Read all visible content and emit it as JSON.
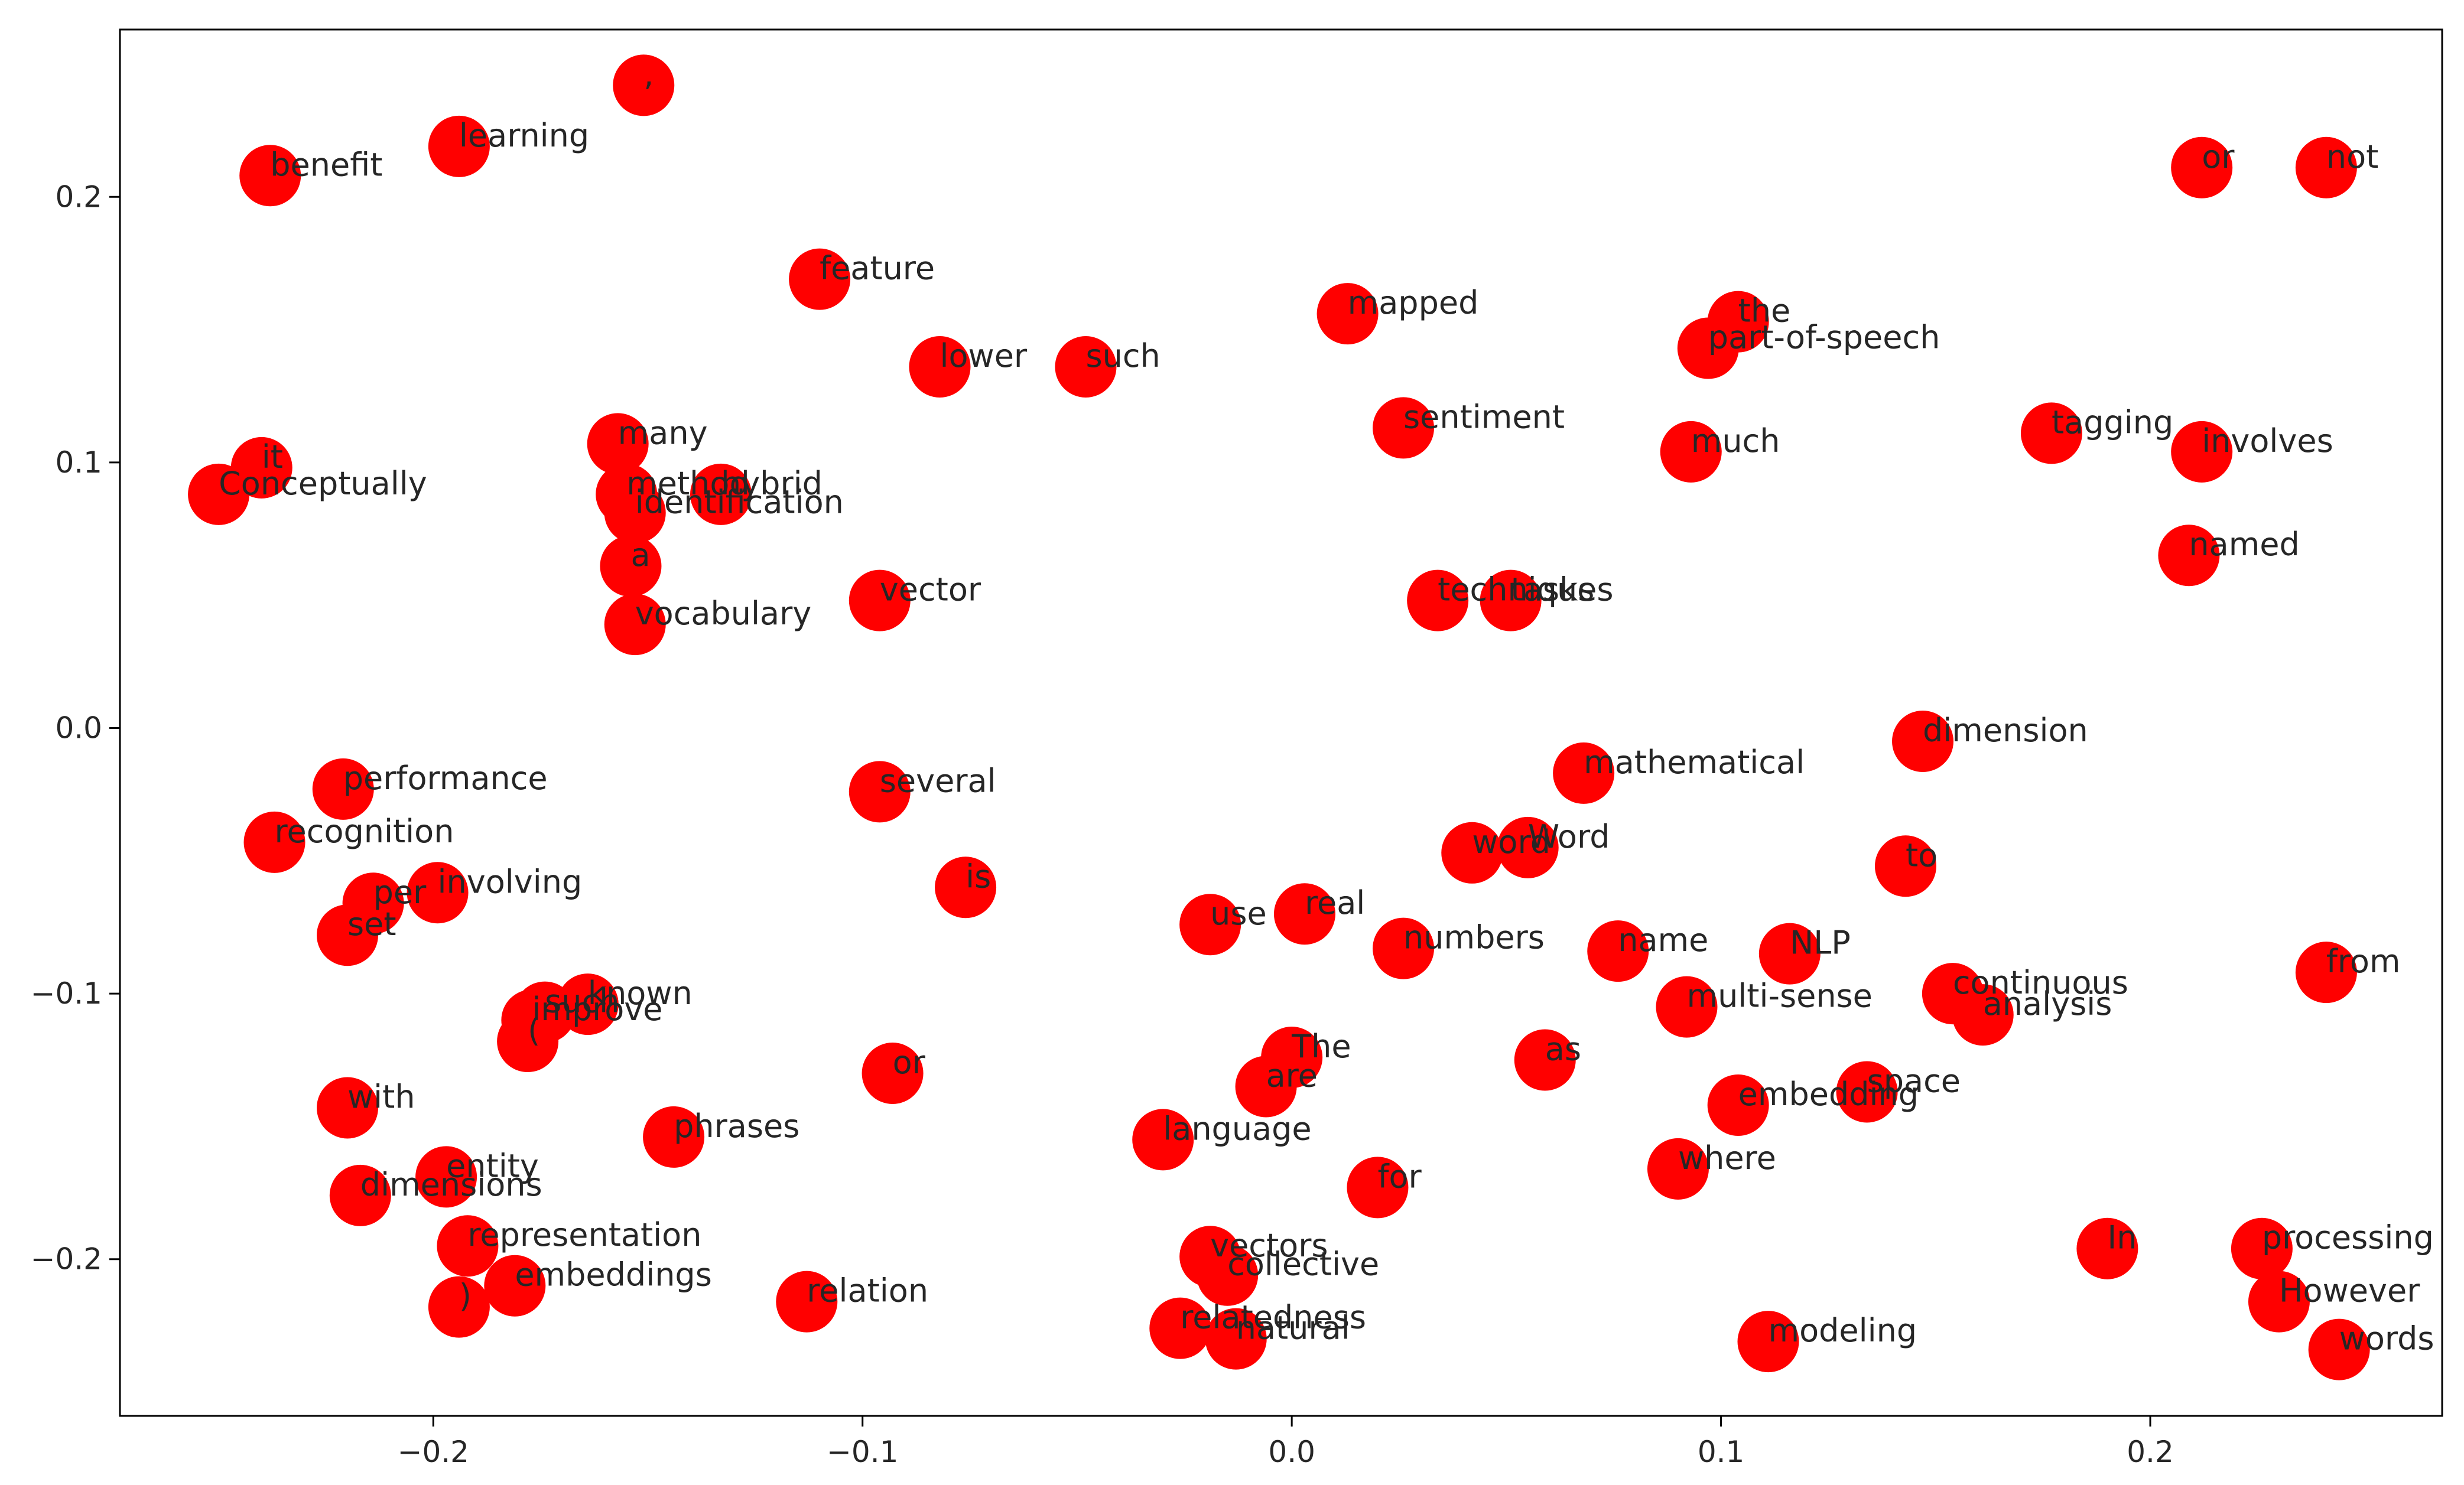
{
  "chart_data": {
    "type": "scatter",
    "title": "",
    "xlabel": "",
    "ylabel": "",
    "xlim": [
      -0.273,
      0.268
    ],
    "ylim": [
      -0.259,
      0.263
    ],
    "xticks": [
      -0.2,
      -0.1,
      0.0,
      0.1,
      0.2
    ],
    "xtick_labels": [
      "−0.2",
      "−0.1",
      "0.0",
      "0.1",
      "0.2"
    ],
    "yticks": [
      -0.2,
      -0.1,
      0.0,
      0.1,
      0.2
    ],
    "yticks_labels": [
      "−0.2",
      "−0.1",
      "0.0",
      "0.1",
      "0.2"
    ],
    "grid": false,
    "marker_color": "#ff0000",
    "points": [
      {
        "label": ",",
        "x": -0.151,
        "y": 0.242
      },
      {
        "label": "learning",
        "x": -0.194,
        "y": 0.219
      },
      {
        "label": "benefit",
        "x": -0.238,
        "y": 0.208
      },
      {
        "label": "feature",
        "x": -0.11,
        "y": 0.169
      },
      {
        "label": "lower",
        "x": -0.082,
        "y": 0.136
      },
      {
        "label": "such",
        "x": -0.048,
        "y": 0.136
      },
      {
        "label": "mapped",
        "x": 0.013,
        "y": 0.156
      },
      {
        "label": "the",
        "x": 0.104,
        "y": 0.153
      },
      {
        "label": "part-of-speech",
        "x": 0.097,
        "y": 0.143
      },
      {
        "label": "or",
        "x": 0.212,
        "y": 0.211
      },
      {
        "label": "not",
        "x": 0.241,
        "y": 0.211
      },
      {
        "label": "many",
        "x": -0.157,
        "y": 0.107
      },
      {
        "label": "it",
        "x": -0.24,
        "y": 0.098
      },
      {
        "label": "Conceptually",
        "x": -0.25,
        "y": 0.088
      },
      {
        "label": "method",
        "x": -0.155,
        "y": 0.088
      },
      {
        "label": "hybrid",
        "x": -0.133,
        "y": 0.088
      },
      {
        "label": "identification",
        "x": -0.153,
        "y": 0.081
      },
      {
        "label": "a",
        "x": -0.154,
        "y": 0.061
      },
      {
        "label": "vocabulary",
        "x": -0.153,
        "y": 0.039
      },
      {
        "label": "vector",
        "x": -0.096,
        "y": 0.048
      },
      {
        "label": "sentiment",
        "x": 0.026,
        "y": 0.113
      },
      {
        "label": "much",
        "x": 0.093,
        "y": 0.104
      },
      {
        "label": "tagging",
        "x": 0.177,
        "y": 0.111
      },
      {
        "label": "involves",
        "x": 0.212,
        "y": 0.104
      },
      {
        "label": "named",
        "x": 0.209,
        "y": 0.065
      },
      {
        "label": "techniques",
        "x": 0.034,
        "y": 0.048
      },
      {
        "label": "tasks",
        "x": 0.051,
        "y": 0.048
      },
      {
        "label": "dimension",
        "x": 0.147,
        "y": -0.005
      },
      {
        "label": "mathematical",
        "x": 0.068,
        "y": -0.017
      },
      {
        "label": "performance",
        "x": -0.221,
        "y": -0.023
      },
      {
        "label": "several",
        "x": -0.096,
        "y": -0.024
      },
      {
        "label": "recognition",
        "x": -0.237,
        "y": -0.043
      },
      {
        "label": "word",
        "x": 0.042,
        "y": -0.047
      },
      {
        "label": "Word",
        "x": 0.055,
        "y": -0.045
      },
      {
        "label": "to",
        "x": 0.143,
        "y": -0.052
      },
      {
        "label": "is",
        "x": -0.076,
        "y": -0.06
      },
      {
        "label": "involving",
        "x": -0.199,
        "y": -0.062
      },
      {
        "label": "per",
        "x": -0.214,
        "y": -0.066
      },
      {
        "label": "set",
        "x": -0.22,
        "y": -0.078
      },
      {
        "label": "real",
        "x": 0.003,
        "y": -0.07
      },
      {
        "label": "use",
        "x": -0.019,
        "y": -0.074
      },
      {
        "label": "numbers",
        "x": 0.026,
        "y": -0.083
      },
      {
        "label": "name",
        "x": 0.076,
        "y": -0.084
      },
      {
        "label": "NLP",
        "x": 0.116,
        "y": -0.085
      },
      {
        "label": "from",
        "x": 0.241,
        "y": -0.092
      },
      {
        "label": "continuous",
        "x": 0.154,
        "y": -0.1
      },
      {
        "label": "analysis",
        "x": 0.161,
        "y": -0.108
      },
      {
        "label": "multi-sense",
        "x": 0.092,
        "y": -0.105
      },
      {
        "label": "such",
        "x": -0.174,
        "y": -0.107
      },
      {
        "label": "known",
        "x": -0.164,
        "y": -0.104
      },
      {
        "label": "improve",
        "x": -0.177,
        "y": -0.11
      },
      {
        "label": "(",
        "x": -0.178,
        "y": -0.118
      },
      {
        "label": "or",
        "x": -0.093,
        "y": -0.13
      },
      {
        "label": "The",
        "x": 0.0,
        "y": -0.124
      },
      {
        "label": "as",
        "x": 0.059,
        "y": -0.125
      },
      {
        "label": "are",
        "x": -0.006,
        "y": -0.135
      },
      {
        "label": "space",
        "x": 0.134,
        "y": -0.137
      },
      {
        "label": "embedding",
        "x": 0.104,
        "y": -0.142
      },
      {
        "label": "with",
        "x": -0.22,
        "y": -0.143
      },
      {
        "label": "phrases",
        "x": -0.144,
        "y": -0.154
      },
      {
        "label": "language",
        "x": -0.03,
        "y": -0.155
      },
      {
        "label": "where",
        "x": 0.09,
        "y": -0.166
      },
      {
        "label": "entity",
        "x": -0.197,
        "y": -0.169
      },
      {
        "label": "dimensions",
        "x": -0.217,
        "y": -0.176
      },
      {
        "label": "for",
        "x": 0.02,
        "y": -0.173
      },
      {
        "label": "representation",
        "x": -0.192,
        "y": -0.195
      },
      {
        "label": "In",
        "x": 0.19,
        "y": -0.196
      },
      {
        "label": "processing",
        "x": 0.226,
        "y": -0.196
      },
      {
        "label": "vectors",
        "x": -0.019,
        "y": -0.199
      },
      {
        "label": "collective",
        "x": -0.015,
        "y": -0.206
      },
      {
        "label": "embeddings",
        "x": -0.181,
        "y": -0.21
      },
      {
        "label": ")",
        "x": -0.194,
        "y": -0.218
      },
      {
        "label": "relation",
        "x": -0.113,
        "y": -0.216
      },
      {
        "label": "However",
        "x": 0.23,
        "y": -0.216
      },
      {
        "label": "relatedness",
        "x": -0.026,
        "y": -0.226
      },
      {
        "label": "natural",
        "x": -0.013,
        "y": -0.23
      },
      {
        "label": "modeling",
        "x": 0.111,
        "y": -0.231
      },
      {
        "label": "words",
        "x": 0.244,
        "y": -0.234
      }
    ]
  }
}
